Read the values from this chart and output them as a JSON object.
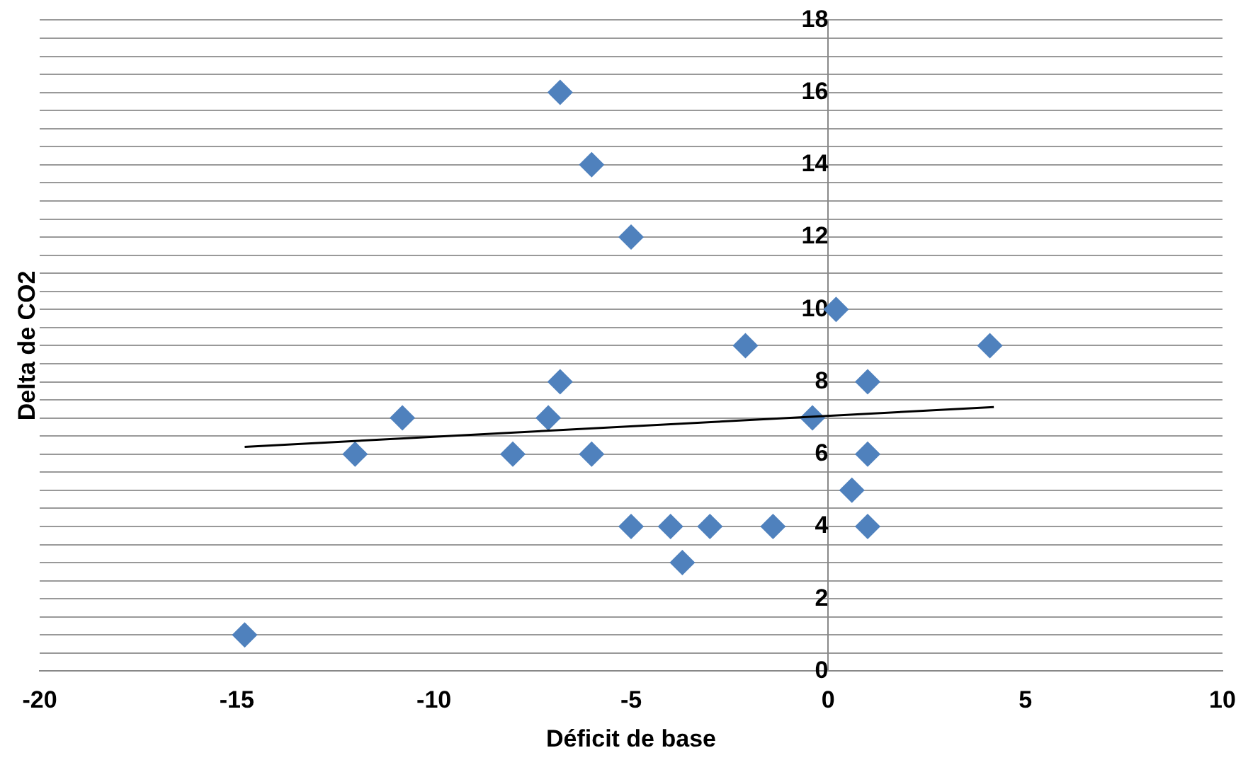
{
  "chart_data": {
    "type": "scatter",
    "xlabel": "Déficit de base",
    "ylabel": "Delta de CO2",
    "xlim": [
      -20,
      10
    ],
    "xticks": [
      -20,
      -15,
      -10,
      -5,
      0,
      5,
      10
    ],
    "ylim": [
      0,
      18
    ],
    "yticks": [
      0,
      {
        "value": 0.5,
        "label": null
      },
      {
        "value": 1,
        "label": null
      },
      {
        "value": 1.5,
        "label": null
      },
      2,
      {
        "value": 2.5,
        "label": null
      },
      {
        "value": 3,
        "label": null
      },
      {
        "value": 3.5,
        "label": null
      },
      4,
      {
        "value": 4.5,
        "label": null
      },
      {
        "value": 5,
        "label": null
      },
      {
        "value": 5.5,
        "label": null
      },
      6,
      {
        "value": 6.5,
        "label": null
      },
      {
        "value": 7,
        "label": null
      },
      {
        "value": 7.5,
        "label": null
      },
      8,
      {
        "value": 8.5,
        "label": null
      },
      {
        "value": 9,
        "label": null
      },
      {
        "value": 9.5,
        "label": null
      },
      10,
      {
        "value": 10.5,
        "label": null
      },
      {
        "value": 11,
        "label": null
      },
      {
        "value": 11.5,
        "label": null
      },
      12,
      {
        "value": 12.5,
        "label": null
      },
      {
        "value": 13,
        "label": null
      },
      {
        "value": 13.5,
        "label": null
      },
      14,
      {
        "value": 14.5,
        "label": null
      },
      {
        "value": 15,
        "label": null
      },
      {
        "value": 15.5,
        "label": null
      },
      16,
      {
        "value": 16.5,
        "label": null
      },
      {
        "value": 17,
        "label": null
      },
      {
        "value": 17.5,
        "label": null
      },
      18
    ],
    "grid": "y",
    "legend": false,
    "series": [
      {
        "type": "scatter",
        "color": "#4f81bd",
        "marker": "diamond",
        "x": [
          -14.8,
          -12,
          -10.8,
          -8,
          -7.1,
          -6.8,
          -6.8,
          -6,
          -6,
          -5,
          -5,
          -4,
          -3.7,
          -3,
          -2.1,
          -1.4,
          -0.4,
          0.2,
          0.6,
          1,
          1,
          1,
          4.1
        ],
        "values": [
          1,
          6,
          7,
          6,
          7,
          8,
          16,
          6,
          14,
          12,
          4,
          4,
          3,
          4,
          9,
          4,
          7,
          10,
          5,
          8,
          6,
          4,
          9
        ]
      },
      {
        "type": "line",
        "color": "#000000",
        "marker": "none",
        "line_style": "solid",
        "x": [
          -14.8,
          4.2
        ],
        "values": [
          6.2,
          7.3
        ]
      }
    ]
  }
}
